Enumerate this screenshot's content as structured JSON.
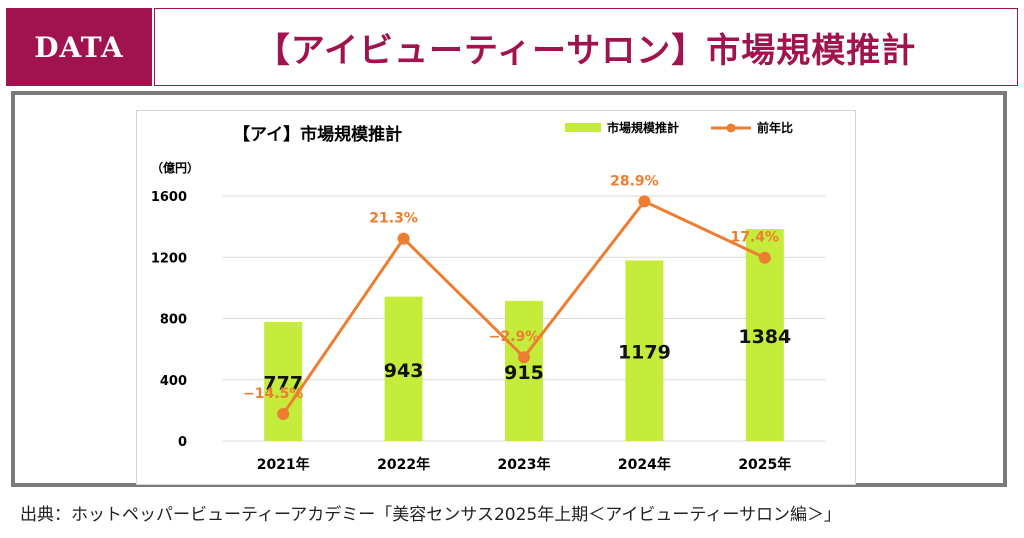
{
  "header": {
    "tag": "DATA",
    "title": "【アイビューティーサロン】市場規模推計"
  },
  "colors": {
    "brand": "#a0134f",
    "bar": "#c5ec3a",
    "line": "#ed7d31",
    "frame": "#7a7a7a"
  },
  "chart_data": {
    "type": "bar",
    "title": "【アイ】市場規模推計",
    "unit_label": "（億円）",
    "categories": [
      "2021年",
      "2022年",
      "2023年",
      "2024年",
      "2025年"
    ],
    "series": [
      {
        "name": "市場規模推計",
        "type": "bar",
        "values": [
          777,
          943,
          915,
          1179,
          1384
        ]
      },
      {
        "name": "前年比",
        "type": "line",
        "values": [
          -14.5,
          21.3,
          -2.9,
          28.9,
          17.4
        ],
        "labels": [
          "−14.5%",
          "21.3%",
          "−2.9%",
          "28.9%",
          "17.4%"
        ]
      }
    ],
    "y_ticks": [
      0,
      400,
      800,
      1200,
      1600
    ],
    "ylim": [
      0,
      1600
    ],
    "line_ylim": [
      -20,
      30
    ],
    "grid": true,
    "legend_position": "top-right"
  },
  "source": "出典：ホットペッパービューティーアカデミー「美容センサス2025年上期＜アイビューティーサロン編＞」"
}
